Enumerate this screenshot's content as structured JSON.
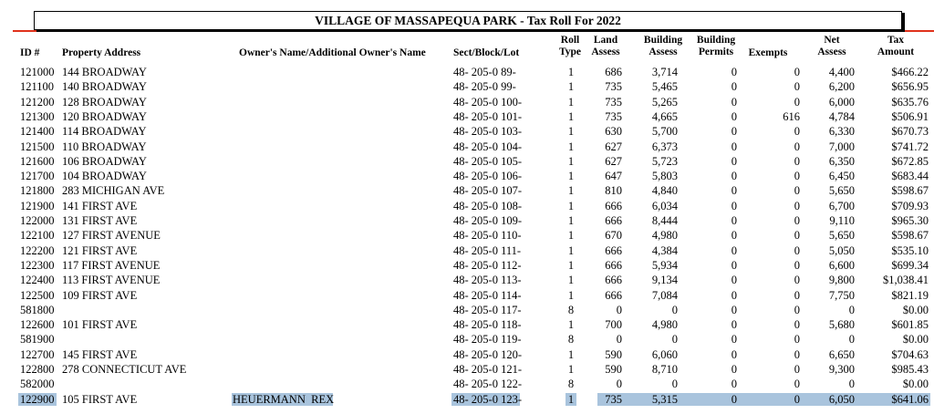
{
  "header": {
    "title": "VILLAGE OF MASSAPEQUA PARK - Tax Roll For 2022"
  },
  "table": {
    "columns": [
      {
        "key": "id",
        "label": "ID #"
      },
      {
        "key": "address",
        "label": "Property Address"
      },
      {
        "key": "owner",
        "label": "Owner's Name/Additional Owner's Name"
      },
      {
        "key": "sbl",
        "label": "Sect/Block/Lot"
      },
      {
        "key": "roll",
        "label": "Roll\nType"
      },
      {
        "key": "land",
        "label": "Land\nAssess"
      },
      {
        "key": "bldg",
        "label": "Building\nAssess"
      },
      {
        "key": "permits",
        "label": "Building\nPermits"
      },
      {
        "key": "exempts",
        "label": "Exempts"
      },
      {
        "key": "net",
        "label": "Net\nAssess"
      },
      {
        "key": "tax",
        "label": "Tax\nAmount"
      }
    ],
    "rows": [
      {
        "id": "121000",
        "address": "144 BROADWAY",
        "sbl": "48- 205-0 89-",
        "roll": "1",
        "land": "686",
        "bldg": "3,714",
        "permits": "0",
        "exempts": "0",
        "net": "4,400",
        "tax": "$466.22"
      },
      {
        "id": "121100",
        "address": "140 BROADWAY",
        "sbl": "48- 205-0 99-",
        "roll": "1",
        "land": "735",
        "bldg": "5,465",
        "permits": "0",
        "exempts": "0",
        "net": "6,200",
        "tax": "$656.95"
      },
      {
        "id": "121200",
        "address": "128 BROADWAY",
        "sbl": "48- 205-0 100-",
        "roll": "1",
        "land": "735",
        "bldg": "5,265",
        "permits": "0",
        "exempts": "0",
        "net": "6,000",
        "tax": "$635.76"
      },
      {
        "id": "121300",
        "address": "120 BROADWAY",
        "sbl": "48- 205-0 101-",
        "roll": "1",
        "land": "735",
        "bldg": "4,665",
        "permits": "0",
        "exempts": "616",
        "net": "4,784",
        "tax": "$506.91"
      },
      {
        "id": "121400",
        "address": "114 BROADWAY",
        "sbl": "48- 205-0 103-",
        "roll": "1",
        "land": "630",
        "bldg": "5,700",
        "permits": "0",
        "exempts": "0",
        "net": "6,330",
        "tax": "$670.73"
      },
      {
        "id": "121500",
        "address": "110 BROADWAY",
        "sbl": "48- 205-0 104-",
        "roll": "1",
        "land": "627",
        "bldg": "6,373",
        "permits": "0",
        "exempts": "0",
        "net": "7,000",
        "tax": "$741.72"
      },
      {
        "id": "121600",
        "address": "106 BROADWAY",
        "sbl": "48- 205-0 105-",
        "roll": "1",
        "land": "627",
        "bldg": "5,723",
        "permits": "0",
        "exempts": "0",
        "net": "6,350",
        "tax": "$672.85"
      },
      {
        "id": "121700",
        "address": "104 BROADWAY",
        "sbl": "48- 205-0 106-",
        "roll": "1",
        "land": "647",
        "bldg": "5,803",
        "permits": "0",
        "exempts": "0",
        "net": "6,450",
        "tax": "$683.44"
      },
      {
        "id": "121800",
        "address": "283 MICHIGAN AVE",
        "sbl": "48- 205-0 107-",
        "roll": "1",
        "land": "810",
        "bldg": "4,840",
        "permits": "0",
        "exempts": "0",
        "net": "5,650",
        "tax": "$598.67"
      },
      {
        "id": "121900",
        "address": "141 FIRST AVE",
        "sbl": "48- 205-0 108-",
        "roll": "1",
        "land": "666",
        "bldg": "6,034",
        "permits": "0",
        "exempts": "0",
        "net": "6,700",
        "tax": "$709.93"
      },
      {
        "id": "122000",
        "address": "131 FIRST AVE",
        "sbl": "48- 205-0 109-",
        "roll": "1",
        "land": "666",
        "bldg": "8,444",
        "permits": "0",
        "exempts": "0",
        "net": "9,110",
        "tax": "$965.30"
      },
      {
        "id": "122100",
        "address": "127 FIRST AVENUE",
        "sbl": "48- 205-0 110-",
        "roll": "1",
        "land": "670",
        "bldg": "4,980",
        "permits": "0",
        "exempts": "0",
        "net": "5,650",
        "tax": "$598.67"
      },
      {
        "id": "122200",
        "address": "121 FIRST AVE",
        "sbl": "48- 205-0 111-",
        "roll": "1",
        "land": "666",
        "bldg": "4,384",
        "permits": "0",
        "exempts": "0",
        "net": "5,050",
        "tax": "$535.10"
      },
      {
        "id": "122300",
        "address": "117 FIRST AVENUE",
        "sbl": "48- 205-0 112-",
        "roll": "1",
        "land": "666",
        "bldg": "5,934",
        "permits": "0",
        "exempts": "0",
        "net": "6,600",
        "tax": "$699.34"
      },
      {
        "id": "122400",
        "address": "113 FIRST AVENUE",
        "sbl": "48- 205-0 113-",
        "roll": "1",
        "land": "666",
        "bldg": "9,134",
        "permits": "0",
        "exempts": "0",
        "net": "9,800",
        "tax": "$1,038.41"
      },
      {
        "id": "122500",
        "address": "109 FIRST AVE",
        "sbl": "48- 205-0 114-",
        "roll": "1",
        "land": "666",
        "bldg": "7,084",
        "permits": "0",
        "exempts": "0",
        "net": "7,750",
        "tax": "$821.19"
      },
      {
        "id": "581800",
        "sbl": "48- 205-0 117-",
        "roll": "8",
        "land": "0",
        "bldg": "0",
        "permits": "0",
        "exempts": "0",
        "net": "0",
        "tax": "$0.00"
      },
      {
        "id": "122600",
        "address": "101 FIRST AVE",
        "sbl": "48- 205-0 118-",
        "roll": "1",
        "land": "700",
        "bldg": "4,980",
        "permits": "0",
        "exempts": "0",
        "net": "5,680",
        "tax": "$601.85"
      },
      {
        "id": "581900",
        "sbl": "48- 205-0 119-",
        "roll": "8",
        "land": "0",
        "bldg": "0",
        "permits": "0",
        "exempts": "0",
        "net": "0",
        "tax": "$0.00"
      },
      {
        "id": "122700",
        "address": "145 FIRST AVE",
        "sbl": "48- 205-0 120-",
        "roll": "1",
        "land": "590",
        "bldg": "6,060",
        "permits": "0",
        "exempts": "0",
        "net": "6,650",
        "tax": "$704.63"
      },
      {
        "id": "122800",
        "address": "278 CONNECTICUT AVE",
        "sbl": "48- 205-0 121-",
        "roll": "1",
        "land": "590",
        "bldg": "8,710",
        "permits": "0",
        "exempts": "0",
        "net": "9,300",
        "tax": "$985.43"
      },
      {
        "id": "582000",
        "sbl": "48- 205-0 122-",
        "roll": "8",
        "land": "0",
        "bldg": "0",
        "permits": "0",
        "exempts": "0",
        "net": "0",
        "tax": "$0.00"
      },
      {
        "id": "122900",
        "address": "105 FIRST AVE",
        "owner": "HEUERMANN  REX",
        "sbl": "48- 205-0 123-",
        "roll": "1",
        "land": "735",
        "bldg": "5,315",
        "permits": "0",
        "exempts": "0",
        "net": "6,050",
        "tax": "$641.06",
        "highlight": true
      }
    ]
  }
}
